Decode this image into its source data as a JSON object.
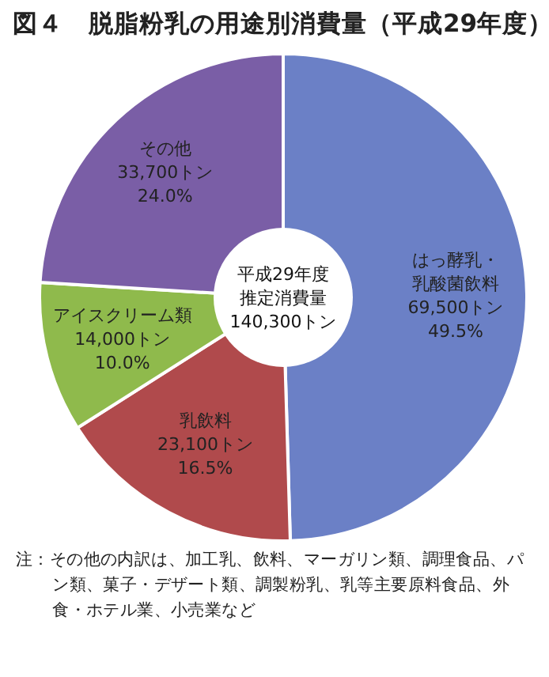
{
  "chart_data": {
    "type": "donut",
    "title": "図４　脱脂粉乳の用途別消費量（平成29年度）",
    "categories": [
      "はっ酵乳・乳酸菌飲料",
      "乳飲料",
      "アイスクリーム類",
      "その他"
    ],
    "values": [
      69500,
      23100,
      14000,
      33700
    ],
    "value_labels": [
      "69,500トン",
      "23,100トン",
      "14,000トン",
      "33,700トン"
    ],
    "colors": [
      "#6b80c6",
      "#b04a4c",
      "#8fba4c",
      "#7a5ea6"
    ],
    "annotations": [
      {
        "text": "49.5%",
        "x": "はっ酵乳・乳酸菌飲料"
      },
      {
        "text": "16.5%",
        "x": "乳飲料"
      },
      {
        "text": "10.0%",
        "x": "アイスクリーム類"
      },
      {
        "text": "24.0%",
        "x": "その他"
      },
      "平成29年度",
      "推定消費量",
      "140,300トン",
      "注：その他の内訳は、加工乳、飲料、マーガリン類、調理食品、パン類、菓子・デザート類、調製粉乳、乳等主要原料食品、外食・ホテル業、小売業など"
    ]
  }
}
